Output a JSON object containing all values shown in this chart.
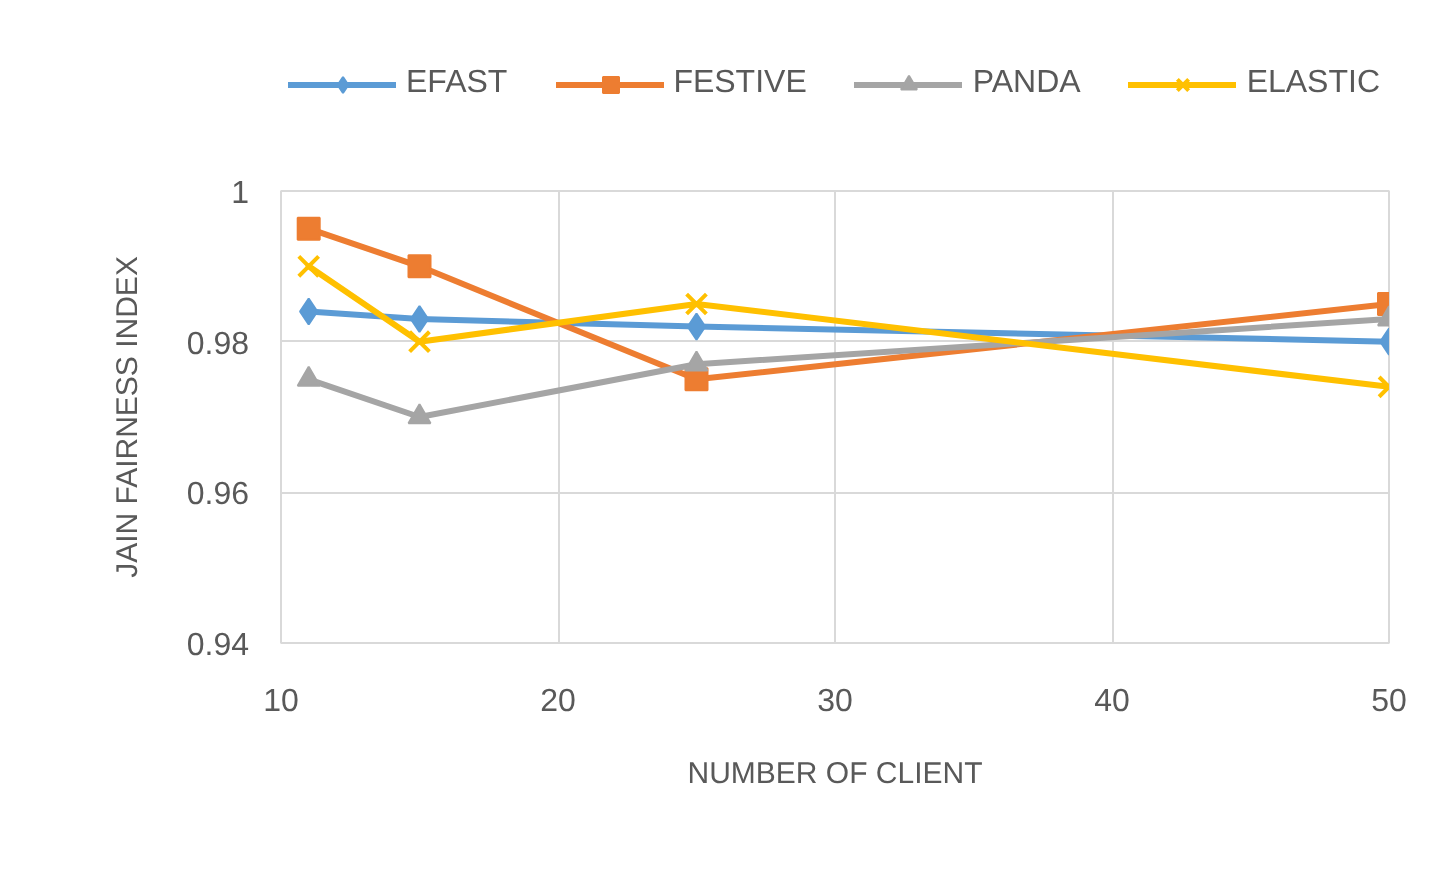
{
  "chart_data": {
    "type": "line",
    "xlabel": "NUMBER OF CLIENT",
    "ylabel": "JAIN FAIRNESS INDEX",
    "x": [
      11,
      15,
      25,
      50
    ],
    "series": [
      {
        "name": "EFAST",
        "color": "#5b9bd5",
        "marker": "diamond",
        "values": [
          0.984,
          0.983,
          0.982,
          0.98
        ]
      },
      {
        "name": "FESTIVE",
        "color": "#ed7d31",
        "marker": "square",
        "values": [
          0.995,
          0.99,
          0.975,
          0.985
        ]
      },
      {
        "name": "PANDA",
        "color": "#a5a5a5",
        "marker": "triangle",
        "values": [
          0.975,
          0.97,
          0.977,
          0.983
        ]
      },
      {
        "name": "ELASTIC",
        "color": "#ffc000",
        "marker": "cross",
        "values": [
          0.99,
          0.98,
          0.985,
          0.974
        ]
      }
    ],
    "xlim": [
      10,
      50
    ],
    "xticks": [
      10,
      20,
      30,
      40,
      50
    ],
    "ylim": [
      0.94,
      1
    ],
    "yticks": [
      0.94,
      0.96,
      0.98,
      1
    ],
    "grid": true,
    "legend": "top"
  }
}
